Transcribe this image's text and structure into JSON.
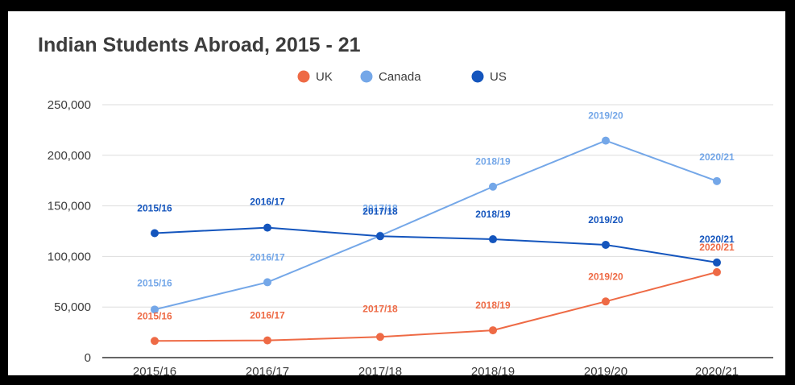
{
  "colors": {
    "background": "#ffffff",
    "frame": "#000000",
    "grid": "#dddddd",
    "axis": "#333333",
    "text": "#3c3c3c"
  },
  "chart_data": {
    "type": "line",
    "title": "Indian Students Abroad, 2015 - 21",
    "xlabel": "",
    "ylabel": "",
    "categories": [
      "2015/16",
      "2016/17",
      "2017/18",
      "2018/19",
      "2019/20",
      "2020/21"
    ],
    "ylim": [
      0,
      250000
    ],
    "yticks": [
      0,
      50000,
      100000,
      150000,
      200000,
      250000
    ],
    "ytick_labels": [
      "0",
      "50,000",
      "100,000",
      "150,000",
      "200,000",
      "250,000"
    ],
    "grid": true,
    "legend_position": "top-center",
    "series": [
      {
        "name": "UK",
        "color": "#ee6a45",
        "values": [
          16500,
          17000,
          20500,
          27000,
          55500,
          84500
        ],
        "labels": [
          "2015/16",
          "2016/17",
          "2017/18",
          "2018/19",
          "2019/20",
          "2020/21"
        ]
      },
      {
        "name": "Canada",
        "color": "#74a7e8",
        "values": [
          47500,
          74500,
          120500,
          169000,
          214500,
          174500
        ],
        "labels": [
          "2015/16",
          "2016/17",
          "2017/18",
          "2018/19",
          "2019/20",
          "2020/21"
        ]
      },
      {
        "name": "US",
        "color": "#1455bd",
        "values": [
          123000,
          128500,
          120000,
          117000,
          111500,
          94000
        ],
        "labels": [
          "2015/16",
          "2016/17",
          "2017/18",
          "2018/19",
          "2019/20",
          "2020/21"
        ]
      }
    ]
  }
}
